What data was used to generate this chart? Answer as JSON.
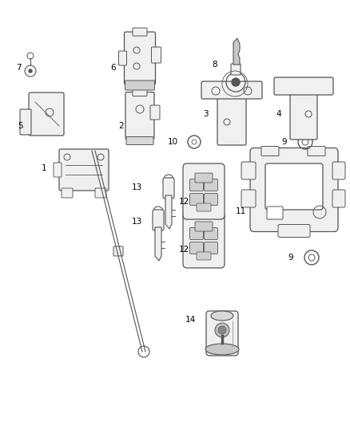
{
  "background_color": "#ffffff",
  "line_color": "#555555",
  "part_fill": "#f0f0f0",
  "label_color": "#000000",
  "figsize": [
    4.38,
    5.33
  ],
  "dpi": 100
}
